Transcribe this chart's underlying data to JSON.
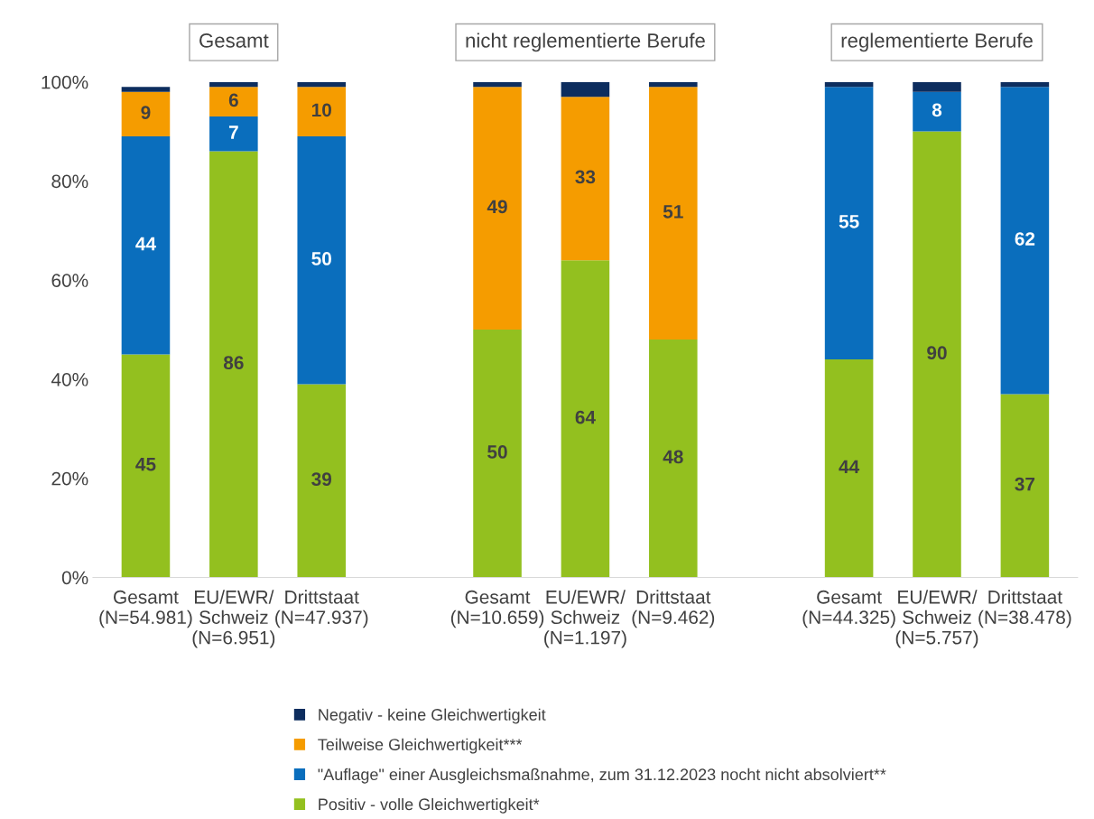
{
  "chart_data": {
    "type": "bar",
    "stacked": true,
    "categories": [
      "Gesamt\n(N=54.981)",
      "EU/EWR/\nSchweiz\n(N=6.951)",
      "Drittstaat\n(N=47.937)",
      null,
      "Gesamt\n(N=10.659)",
      "EU/EWR/\nSchweiz\n(N=1.197)",
      "Drittstaat\n(N=9.462)",
      null,
      "Gesamt\n(N=44.325)",
      "EU/EWR/\nSchweiz\n(N=5.757)",
      "Drittstaat\n(N=38.478)"
    ],
    "series": [
      {
        "name": "Positiv - volle Gleichwertigkeit*",
        "color": "#93c01f",
        "values": [
          45,
          86,
          39,
          null,
          50,
          64,
          48,
          null,
          44,
          90,
          37
        ],
        "value_labels": [
          "45",
          "86",
          "39",
          null,
          "50",
          "64",
          "48",
          null,
          "44",
          "90",
          "37"
        ]
      },
      {
        "name": "\"Auflage\" einer Ausgleichsmaßnahme, zum 31.12.2023 nocht nicht absolviert**",
        "color": "#0a6ebd",
        "values": [
          44,
          7,
          50,
          null,
          0,
          0,
          0,
          null,
          55,
          8,
          62
        ],
        "value_labels": [
          "44",
          "7",
          "50",
          null,
          null,
          null,
          null,
          null,
          "55",
          "8",
          "62"
        ]
      },
      {
        "name": "Teilweise Gleichwertigkeit***",
        "color": "#f59c00",
        "values": [
          9,
          6,
          10,
          null,
          49,
          33,
          51,
          null,
          0,
          0,
          0
        ],
        "value_labels": [
          "9",
          "6",
          "10",
          null,
          "49",
          "33",
          "51",
          null,
          null,
          null,
          null
        ]
      },
      {
        "name": "Negativ - keine Gleichwertigkeit",
        "color": "#0d2d5e",
        "values": [
          1,
          1,
          1,
          null,
          1,
          3,
          1,
          null,
          1,
          2,
          1
        ]
      }
    ],
    "ylim": [
      0,
      100
    ],
    "yticks": [
      {
        "value": 0,
        "label": "0%"
      },
      {
        "value": 20,
        "label": "20%"
      },
      {
        "value": 40,
        "label": "40%"
      },
      {
        "value": 60,
        "label": "60%"
      },
      {
        "value": 80,
        "label": "80%"
      },
      {
        "value": 100,
        "label": "100%"
      }
    ],
    "annotations": [
      "Gesamt",
      "nicht reglementierte Berufe",
      "reglementierte Berufe"
    ],
    "legend": "bottom",
    "grid": false
  }
}
